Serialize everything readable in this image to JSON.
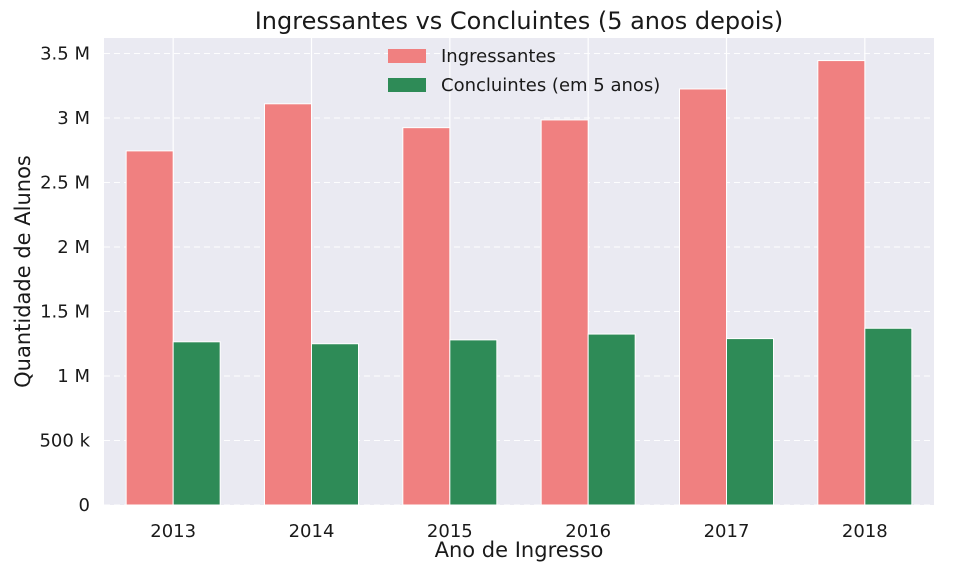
{
  "chart_data": {
    "type": "bar",
    "title": "Ingressantes vs Concluintes (5 anos depois)",
    "xlabel": "Ano de Ingresso",
    "ylabel": "Quantidade de Alunos",
    "categories": [
      "2013",
      "2014",
      "2015",
      "2016",
      "2017",
      "2018"
    ],
    "series": [
      {
        "name": "Ingressantes",
        "color": "#f08080",
        "values": [
          2745000,
          3110000,
          2925000,
          2985000,
          3225000,
          3445000
        ]
      },
      {
        "name": "Concluintes (em 5 anos)",
        "color": "#2e8b57",
        "values": [
          1265000,
          1250000,
          1280000,
          1325000,
          1290000,
          1370000
        ]
      }
    ],
    "ylim": [
      0,
      3620000
    ],
    "yticks": [
      {
        "value": 0,
        "label": "0"
      },
      {
        "value": 500000,
        "label": "500 k"
      },
      {
        "value": 1000000,
        "label": "1 M"
      },
      {
        "value": 1500000,
        "label": "1.5 M"
      },
      {
        "value": 2000000,
        "label": "2 M"
      },
      {
        "value": 2500000,
        "label": "2.5 M"
      },
      {
        "value": 3000000,
        "label": "3 M"
      },
      {
        "value": 3500000,
        "label": "3.5 M"
      }
    ],
    "grid": true,
    "legend": "top-center",
    "plot_background": "#eaeaf2"
  }
}
